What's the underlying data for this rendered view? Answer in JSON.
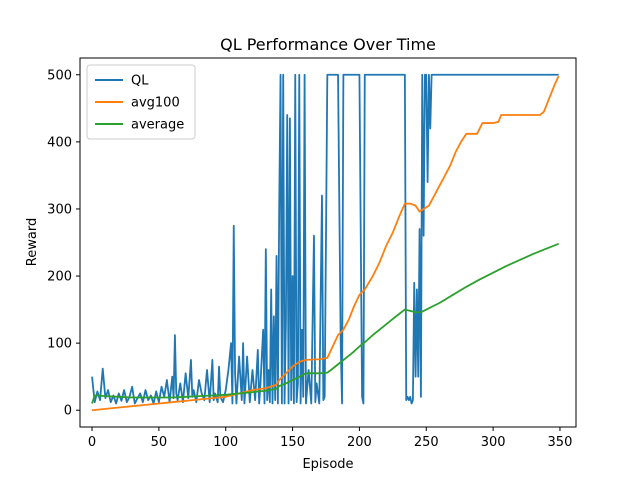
{
  "chart_data": {
    "type": "line",
    "title": "QL Performance Over Time",
    "xlabel": "Episode",
    "ylabel": "Reward",
    "xlim": [
      -9,
      362
    ],
    "ylim": [
      -25,
      525
    ],
    "xticks": [
      0,
      50,
      100,
      150,
      200,
      250,
      300,
      350
    ],
    "yticks": [
      0,
      100,
      200,
      300,
      400,
      500
    ],
    "grid": false,
    "legend_position": "top-left",
    "series": [
      {
        "name": "QL",
        "color": "#1f77b4",
        "points": [
          [
            0,
            50
          ],
          [
            2,
            12
          ],
          [
            4,
            28
          ],
          [
            6,
            15
          ],
          [
            8,
            62
          ],
          [
            10,
            18
          ],
          [
            12,
            30
          ],
          [
            14,
            12
          ],
          [
            16,
            22
          ],
          [
            18,
            10
          ],
          [
            20,
            25
          ],
          [
            22,
            14
          ],
          [
            24,
            30
          ],
          [
            26,
            12
          ],
          [
            28,
            20
          ],
          [
            30,
            35
          ],
          [
            32,
            10
          ],
          [
            34,
            18
          ],
          [
            36,
            25
          ],
          [
            38,
            12
          ],
          [
            40,
            30
          ],
          [
            42,
            15
          ],
          [
            44,
            22
          ],
          [
            46,
            10
          ],
          [
            48,
            28
          ],
          [
            50,
            12
          ],
          [
            52,
            35
          ],
          [
            54,
            20
          ],
          [
            56,
            45
          ],
          [
            58,
            12
          ],
          [
            60,
            50
          ],
          [
            61,
            18
          ],
          [
            62,
            112
          ],
          [
            63,
            25
          ],
          [
            64,
            15
          ],
          [
            66,
            40
          ],
          [
            68,
            12
          ],
          [
            70,
            55
          ],
          [
            72,
            18
          ],
          [
            74,
            75
          ],
          [
            75,
            20
          ],
          [
            76,
            30
          ],
          [
            78,
            12
          ],
          [
            80,
            45
          ],
          [
            82,
            25
          ],
          [
            84,
            15
          ],
          [
            86,
            60
          ],
          [
            88,
            12
          ],
          [
            90,
            75
          ],
          [
            91,
            15
          ],
          [
            92,
            25
          ],
          [
            94,
            12
          ],
          [
            95,
            65
          ],
          [
            96,
            20
          ],
          [
            98,
            12
          ],
          [
            100,
            30
          ],
          [
            102,
            60
          ],
          [
            104,
            100
          ],
          [
            105,
            10
          ],
          [
            106,
            275
          ],
          [
            107,
            55
          ],
          [
            108,
            10
          ],
          [
            110,
            80
          ],
          [
            112,
            15
          ],
          [
            113,
            100
          ],
          [
            114,
            10
          ],
          [
            116,
            80
          ],
          [
            118,
            12
          ],
          [
            120,
            60
          ],
          [
            122,
            15
          ],
          [
            124,
            90
          ],
          [
            125,
            10
          ],
          [
            126,
            40
          ],
          [
            128,
            120
          ],
          [
            129,
            10
          ],
          [
            130,
            240
          ],
          [
            131,
            15
          ],
          [
            132,
            60
          ],
          [
            133,
            12
          ],
          [
            134,
            180
          ],
          [
            135,
            10
          ],
          [
            136,
            140
          ],
          [
            137,
            15
          ],
          [
            138,
            230
          ],
          [
            139,
            10
          ],
          [
            140,
            300
          ],
          [
            141,
            500
          ],
          [
            142,
            10
          ],
          [
            143,
            500
          ],
          [
            144,
            10
          ],
          [
            145,
            130
          ],
          [
            146,
            440
          ],
          [
            147,
            10
          ],
          [
            148,
            435
          ],
          [
            149,
            15
          ],
          [
            150,
            200
          ],
          [
            151,
            10
          ],
          [
            152,
            500
          ],
          [
            153,
            12
          ],
          [
            154,
            40
          ],
          [
            155,
            500
          ],
          [
            156,
            10
          ],
          [
            157,
            120
          ],
          [
            158,
            20
          ],
          [
            159,
            500
          ],
          [
            160,
            10
          ],
          [
            162,
            60
          ],
          [
            164,
            10
          ],
          [
            166,
            260
          ],
          [
            167,
            12
          ],
          [
            168,
            40
          ],
          [
            170,
            10
          ],
          [
            172,
            320
          ],
          [
            173,
            15
          ],
          [
            174,
            20
          ],
          [
            176,
            500
          ],
          [
            178,
            500
          ],
          [
            180,
            500
          ],
          [
            182,
            500
          ],
          [
            184,
            500
          ],
          [
            186,
            100
          ],
          [
            187,
            10
          ],
          [
            188,
            500
          ],
          [
            190,
            500
          ],
          [
            192,
            500
          ],
          [
            194,
            500
          ],
          [
            196,
            500
          ],
          [
            198,
            500
          ],
          [
            200,
            500
          ],
          [
            202,
            20
          ],
          [
            203,
            10
          ],
          [
            204,
            500
          ],
          [
            206,
            500
          ],
          [
            210,
            500
          ],
          [
            215,
            500
          ],
          [
            220,
            500
          ],
          [
            225,
            500
          ],
          [
            230,
            500
          ],
          [
            234,
            500
          ],
          [
            235,
            15
          ],
          [
            236,
            20
          ],
          [
            237,
            15
          ],
          [
            238,
            20
          ],
          [
            239,
            10
          ],
          [
            240,
            15
          ],
          [
            241,
            190
          ],
          [
            242,
            50
          ],
          [
            243,
            180
          ],
          [
            244,
            50
          ],
          [
            245,
            270
          ],
          [
            246,
            20
          ],
          [
            247,
            500
          ],
          [
            248,
            260
          ],
          [
            249,
            500
          ],
          [
            250,
            500
          ],
          [
            251,
            340
          ],
          [
            252,
            500
          ],
          [
            253,
            420
          ],
          [
            254,
            500
          ],
          [
            260,
            500
          ],
          [
            270,
            500
          ],
          [
            280,
            500
          ],
          [
            290,
            500
          ],
          [
            300,
            500
          ],
          [
            310,
            500
          ],
          [
            320,
            500
          ],
          [
            330,
            500
          ],
          [
            340,
            500
          ],
          [
            349,
            500
          ]
        ]
      },
      {
        "name": "avg100",
        "color": "#ff7f0e",
        "points": [
          [
            0,
            0
          ],
          [
            20,
            4
          ],
          [
            40,
            8
          ],
          [
            60,
            12
          ],
          [
            80,
            16
          ],
          [
            100,
            20
          ],
          [
            110,
            25
          ],
          [
            120,
            30
          ],
          [
            130,
            33
          ],
          [
            138,
            38
          ],
          [
            140,
            45
          ],
          [
            145,
            55
          ],
          [
            150,
            65
          ],
          [
            155,
            72
          ],
          [
            160,
            75
          ],
          [
            170,
            76
          ],
          [
            176,
            78
          ],
          [
            180,
            95
          ],
          [
            184,
            112
          ],
          [
            188,
            120
          ],
          [
            192,
            135
          ],
          [
            196,
            155
          ],
          [
            200,
            172
          ],
          [
            204,
            180
          ],
          [
            210,
            200
          ],
          [
            215,
            220
          ],
          [
            220,
            245
          ],
          [
            225,
            265
          ],
          [
            230,
            290
          ],
          [
            234,
            308
          ],
          [
            238,
            308
          ],
          [
            242,
            305
          ],
          [
            245,
            296
          ],
          [
            248,
            300
          ],
          [
            252,
            305
          ],
          [
            256,
            320
          ],
          [
            260,
            335
          ],
          [
            264,
            350
          ],
          [
            268,
            365
          ],
          [
            272,
            385
          ],
          [
            276,
            400
          ],
          [
            280,
            412
          ],
          [
            288,
            412
          ],
          [
            290,
            420
          ],
          [
            292,
            428
          ],
          [
            300,
            428
          ],
          [
            304,
            430
          ],
          [
            306,
            440
          ],
          [
            320,
            440
          ],
          [
            330,
            440
          ],
          [
            335,
            440
          ],
          [
            338,
            445
          ],
          [
            342,
            465
          ],
          [
            346,
            485
          ],
          [
            349,
            498
          ]
        ]
      },
      {
        "name": "average",
        "color": "#2ca02c",
        "points": [
          [
            0,
            10
          ],
          [
            2,
            22
          ],
          [
            4,
            22
          ],
          [
            10,
            21
          ],
          [
            20,
            20
          ],
          [
            30,
            19
          ],
          [
            40,
            19
          ],
          [
            50,
            19
          ],
          [
            60,
            19
          ],
          [
            70,
            20
          ],
          [
            80,
            21
          ],
          [
            90,
            22
          ],
          [
            100,
            23
          ],
          [
            110,
            25
          ],
          [
            120,
            27
          ],
          [
            130,
            29
          ],
          [
            138,
            32
          ],
          [
            140,
            36
          ],
          [
            145,
            40
          ],
          [
            150,
            45
          ],
          [
            155,
            50
          ],
          [
            160,
            55
          ],
          [
            170,
            55
          ],
          [
            176,
            56
          ],
          [
            180,
            62
          ],
          [
            185,
            70
          ],
          [
            190,
            78
          ],
          [
            195,
            86
          ],
          [
            200,
            95
          ],
          [
            205,
            103
          ],
          [
            210,
            112
          ],
          [
            215,
            120
          ],
          [
            220,
            128
          ],
          [
            225,
            136
          ],
          [
            230,
            144
          ],
          [
            234,
            150
          ],
          [
            238,
            148
          ],
          [
            242,
            146
          ],
          [
            246,
            146
          ],
          [
            250,
            150
          ],
          [
            260,
            160
          ],
          [
            270,
            172
          ],
          [
            280,
            184
          ],
          [
            290,
            195
          ],
          [
            300,
            205
          ],
          [
            310,
            215
          ],
          [
            320,
            224
          ],
          [
            330,
            233
          ],
          [
            340,
            241
          ],
          [
            349,
            248
          ]
        ]
      }
    ]
  }
}
